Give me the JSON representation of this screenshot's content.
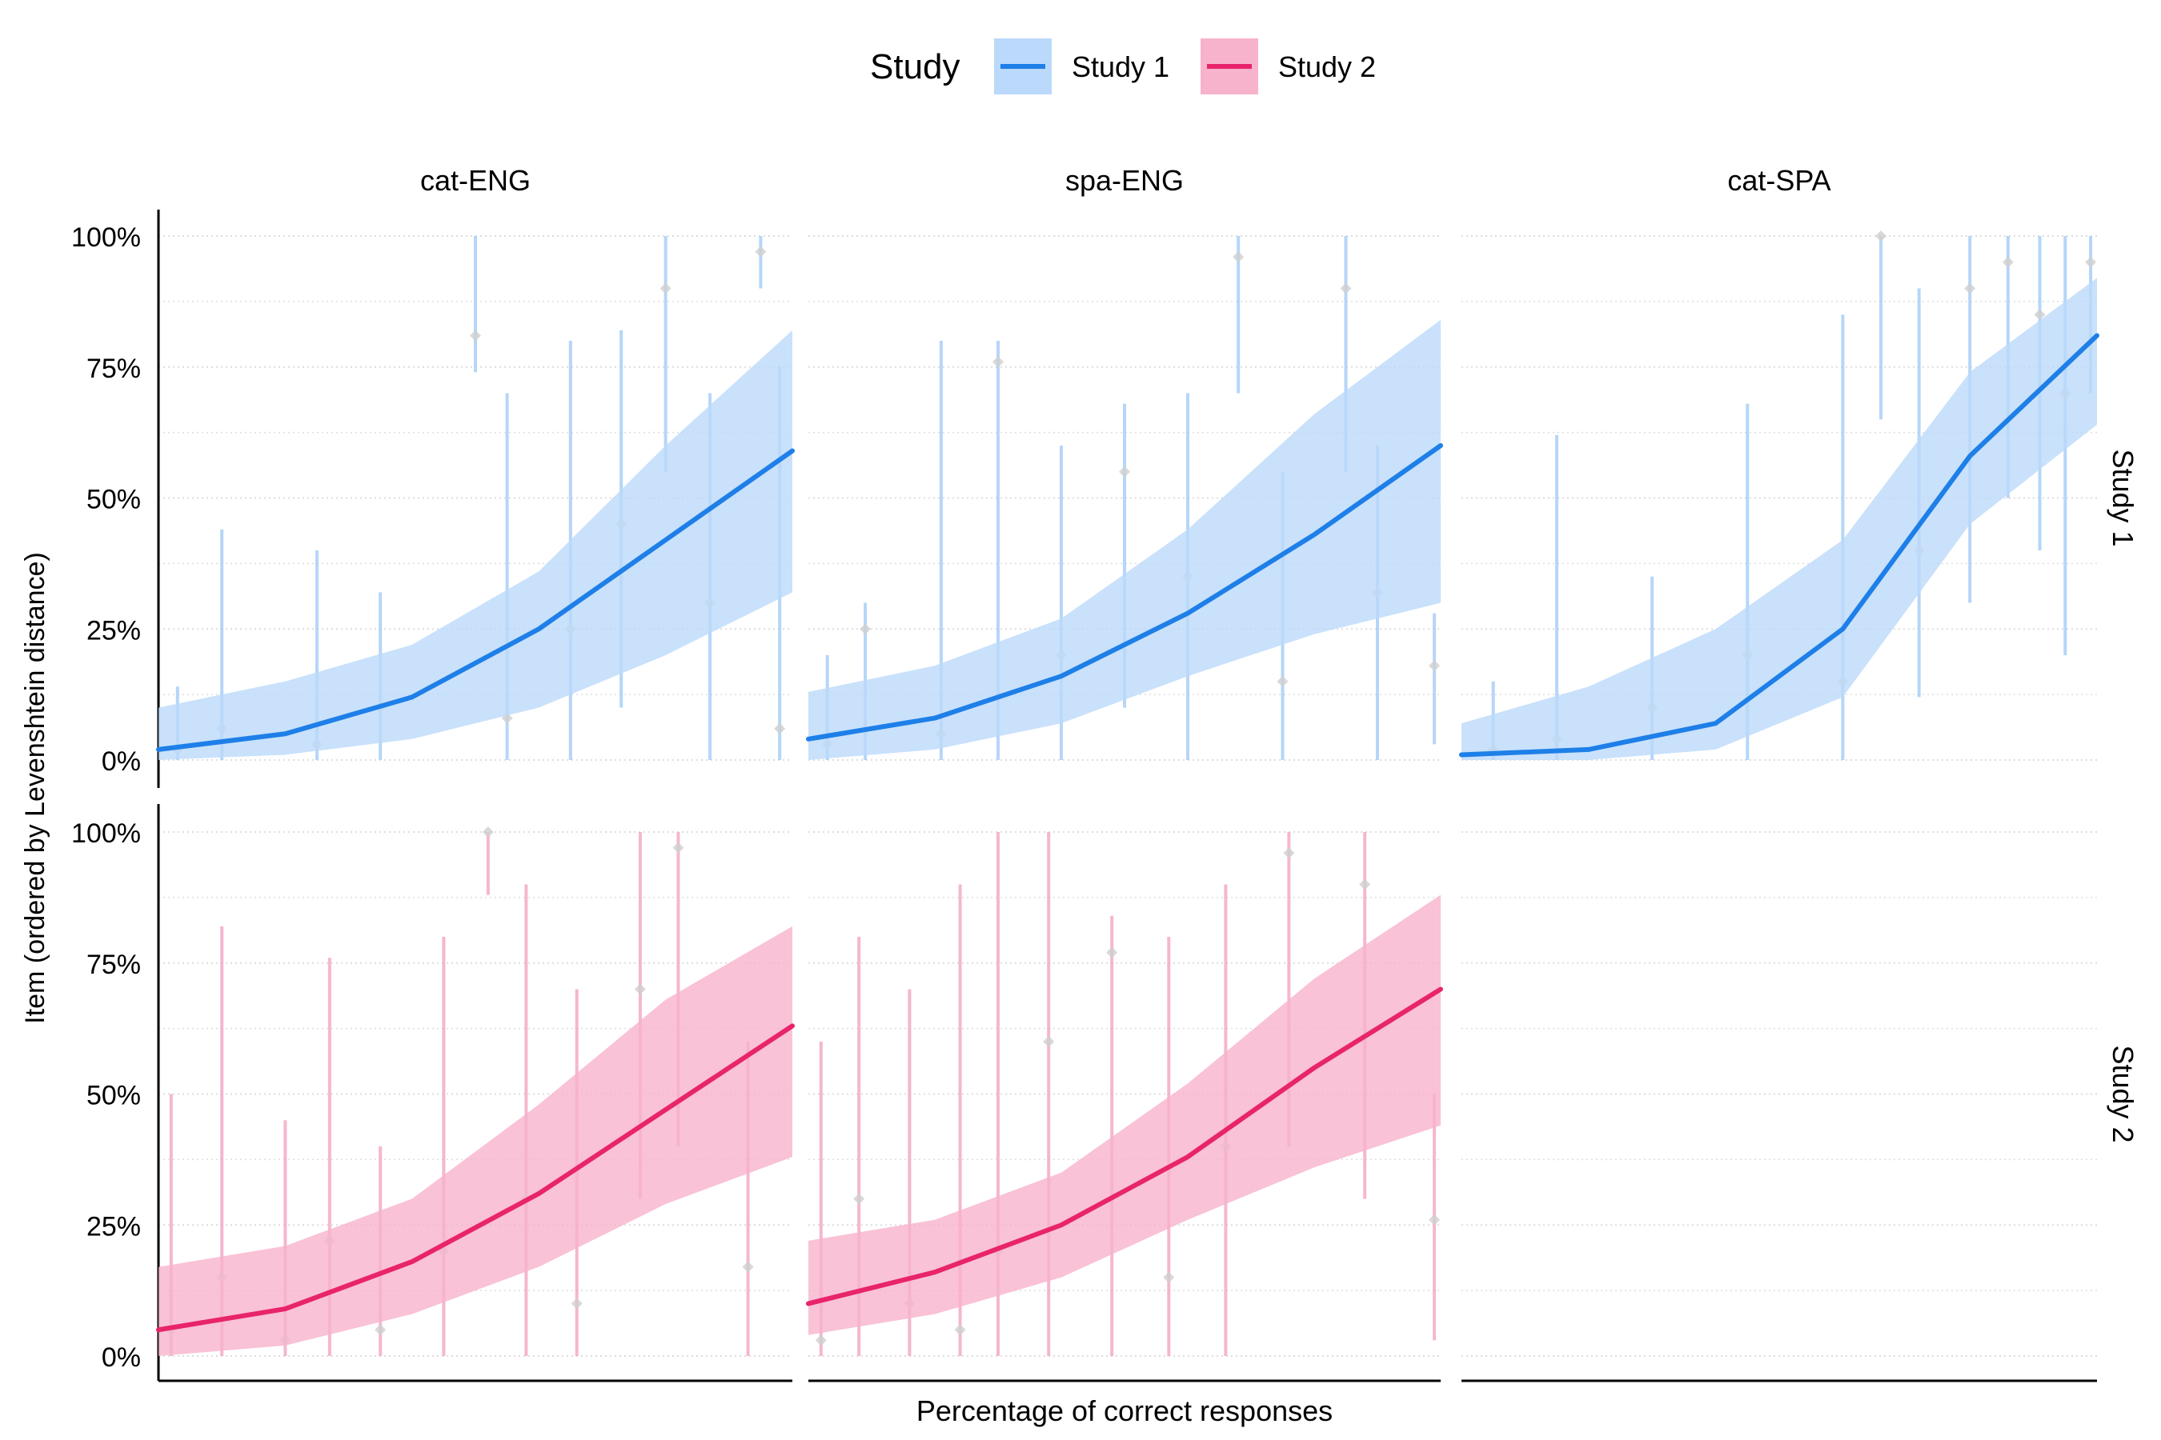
{
  "colors": {
    "study1_line": "#1E7FE8",
    "study1_band": "#BBD9FA",
    "study1_bar": "#9CC8F5",
    "study2_line": "#E8246B",
    "study2_band": "#F7B3CC",
    "study2_bar": "#F39DBF",
    "point": "#CFCFCF",
    "grid": "#DDDDDD"
  },
  "legend": {
    "title": "Study",
    "entries": [
      {
        "label": "Study 1",
        "color_key": "study1"
      },
      {
        "label": "Study 2",
        "color_key": "study2"
      }
    ]
  },
  "axes": {
    "x_title": "Percentage of correct responses",
    "y_title": "Item (ordered by Levenshtein distance)",
    "y_ticks": [
      "0%",
      "25%",
      "50%",
      "75%",
      "100%"
    ]
  },
  "chart_data": {
    "type": "line",
    "facet_columns": [
      "cat-ENG",
      "spa-ENG",
      "cat-SPA"
    ],
    "facet_rows": [
      "Study 1",
      "Study 2"
    ],
    "ylim": [
      0,
      1
    ],
    "xlim": [
      0,
      1
    ],
    "y_tick_values": [
      0,
      0.25,
      0.5,
      0.75,
      1
    ],
    "grid": "horizontal dotted",
    "legend_position": "top",
    "panels": [
      {
        "row": "Study 1",
        "col": "cat-ENG",
        "series": "Study 1",
        "x": [
          0,
          0.2,
          0.4,
          0.6,
          0.8,
          1.0
        ],
        "fit": [
          0.02,
          0.05,
          0.12,
          0.25,
          0.42,
          0.59
        ],
        "lower": [
          0.0,
          0.01,
          0.04,
          0.1,
          0.2,
          0.32
        ],
        "upper": [
          0.1,
          0.15,
          0.22,
          0.36,
          0.6,
          0.82
        ],
        "items": [
          {
            "x": 0.03,
            "y": 0.02,
            "lo": 0.0,
            "hi": 0.14
          },
          {
            "x": 0.1,
            "y": 0.06,
            "lo": 0.0,
            "hi": 0.44
          },
          {
            "x": 0.25,
            "y": 0.03,
            "lo": 0.0,
            "hi": 0.4
          },
          {
            "x": 0.35,
            "y": 0.1,
            "lo": 0.0,
            "hi": 0.32
          },
          {
            "x": 0.5,
            "y": 0.81,
            "lo": 0.74,
            "hi": 1.0
          },
          {
            "x": 0.55,
            "y": 0.08,
            "lo": 0.0,
            "hi": 0.7
          },
          {
            "x": 0.65,
            "y": 0.25,
            "lo": 0.0,
            "hi": 0.8
          },
          {
            "x": 0.73,
            "y": 0.45,
            "lo": 0.1,
            "hi": 0.82
          },
          {
            "x": 0.8,
            "y": 0.9,
            "lo": 0.55,
            "hi": 1.0
          },
          {
            "x": 0.87,
            "y": 0.3,
            "lo": 0.0,
            "hi": 0.7
          },
          {
            "x": 0.95,
            "y": 0.97,
            "lo": 0.9,
            "hi": 1.0
          },
          {
            "x": 0.98,
            "y": 0.06,
            "lo": 0.0,
            "hi": 0.75
          }
        ]
      },
      {
        "row": "Study 1",
        "col": "spa-ENG",
        "series": "Study 1",
        "x": [
          0,
          0.2,
          0.4,
          0.6,
          0.8,
          1.0
        ],
        "fit": [
          0.04,
          0.08,
          0.16,
          0.28,
          0.43,
          0.6
        ],
        "lower": [
          0.0,
          0.02,
          0.07,
          0.16,
          0.24,
          0.3
        ],
        "upper": [
          0.13,
          0.18,
          0.27,
          0.44,
          0.66,
          0.84
        ],
        "items": [
          {
            "x": 0.03,
            "y": 0.03,
            "lo": 0.0,
            "hi": 0.2
          },
          {
            "x": 0.09,
            "y": 0.25,
            "lo": 0.0,
            "hi": 0.3
          },
          {
            "x": 0.21,
            "y": 0.05,
            "lo": 0.0,
            "hi": 0.8
          },
          {
            "x": 0.3,
            "y": 0.76,
            "lo": 0.0,
            "hi": 0.8
          },
          {
            "x": 0.4,
            "y": 0.2,
            "lo": 0.0,
            "hi": 0.6
          },
          {
            "x": 0.5,
            "y": 0.55,
            "lo": 0.1,
            "hi": 0.68
          },
          {
            "x": 0.6,
            "y": 0.35,
            "lo": 0.0,
            "hi": 0.7
          },
          {
            "x": 0.68,
            "y": 0.96,
            "lo": 0.7,
            "hi": 1.0
          },
          {
            "x": 0.75,
            "y": 0.15,
            "lo": 0.0,
            "hi": 0.55
          },
          {
            "x": 0.85,
            "y": 0.9,
            "lo": 0.55,
            "hi": 1.0
          },
          {
            "x": 0.9,
            "y": 0.32,
            "lo": 0.0,
            "hi": 0.6
          },
          {
            "x": 0.99,
            "y": 0.18,
            "lo": 0.03,
            "hi": 0.28
          }
        ]
      },
      {
        "row": "Study 1",
        "col": "cat-SPA",
        "series": "Study 1",
        "x": [
          0,
          0.2,
          0.4,
          0.6,
          0.8,
          1.0
        ],
        "fit": [
          0.01,
          0.02,
          0.07,
          0.25,
          0.58,
          0.81
        ],
        "lower": [
          0.0,
          0.0,
          0.02,
          0.12,
          0.45,
          0.64
        ],
        "upper": [
          0.07,
          0.14,
          0.25,
          0.42,
          0.74,
          0.92
        ],
        "items": [
          {
            "x": 0.05,
            "y": 0.02,
            "lo": 0.0,
            "hi": 0.15
          },
          {
            "x": 0.15,
            "y": 0.04,
            "lo": 0.0,
            "hi": 0.62
          },
          {
            "x": 0.3,
            "y": 0.1,
            "lo": 0.0,
            "hi": 0.35
          },
          {
            "x": 0.45,
            "y": 0.2,
            "lo": 0.0,
            "hi": 0.68
          },
          {
            "x": 0.6,
            "y": 0.15,
            "lo": 0.0,
            "hi": 0.85
          },
          {
            "x": 0.66,
            "y": 1.0,
            "lo": 0.65,
            "hi": 1.0
          },
          {
            "x": 0.72,
            "y": 0.4,
            "lo": 0.12,
            "hi": 0.9
          },
          {
            "x": 0.8,
            "y": 0.9,
            "lo": 0.3,
            "hi": 1.0
          },
          {
            "x": 0.86,
            "y": 0.95,
            "lo": 0.5,
            "hi": 1.0
          },
          {
            "x": 0.91,
            "y": 0.85,
            "lo": 0.4,
            "hi": 1.0
          },
          {
            "x": 0.95,
            "y": 0.7,
            "lo": 0.2,
            "hi": 1.0
          },
          {
            "x": 0.99,
            "y": 0.95,
            "lo": 0.7,
            "hi": 1.0
          }
        ]
      },
      {
        "row": "Study 2",
        "col": "cat-ENG",
        "series": "Study 2",
        "x": [
          0,
          0.2,
          0.4,
          0.6,
          0.8,
          1.0
        ],
        "fit": [
          0.05,
          0.09,
          0.18,
          0.31,
          0.47,
          0.63
        ],
        "lower": [
          0.0,
          0.02,
          0.08,
          0.17,
          0.29,
          0.38
        ],
        "upper": [
          0.17,
          0.21,
          0.3,
          0.48,
          0.68,
          0.82
        ],
        "items": [
          {
            "x": 0.02,
            "y": 0.05,
            "lo": 0.0,
            "hi": 0.5
          },
          {
            "x": 0.1,
            "y": 0.15,
            "lo": 0.0,
            "hi": 0.82
          },
          {
            "x": 0.2,
            "y": 0.03,
            "lo": 0.0,
            "hi": 0.45
          },
          {
            "x": 0.27,
            "y": 0.22,
            "lo": 0.0,
            "hi": 0.76
          },
          {
            "x": 0.35,
            "y": 0.05,
            "lo": 0.0,
            "hi": 0.4
          },
          {
            "x": 0.45,
            "y": 0.2,
            "lo": 0.0,
            "hi": 0.8
          },
          {
            "x": 0.52,
            "y": 1.0,
            "lo": 0.88,
            "hi": 1.0
          },
          {
            "x": 0.58,
            "y": 0.3,
            "lo": 0.0,
            "hi": 0.9
          },
          {
            "x": 0.66,
            "y": 0.1,
            "lo": 0.0,
            "hi": 0.7
          },
          {
            "x": 0.76,
            "y": 0.7,
            "lo": 0.3,
            "hi": 1.0
          },
          {
            "x": 0.82,
            "y": 0.97,
            "lo": 0.4,
            "hi": 1.0
          },
          {
            "x": 0.93,
            "y": 0.17,
            "lo": 0.0,
            "hi": 0.6
          }
        ]
      },
      {
        "row": "Study 2",
        "col": "spa-ENG",
        "series": "Study 2",
        "x": [
          0,
          0.2,
          0.4,
          0.6,
          0.8,
          1.0
        ],
        "fit": [
          0.1,
          0.16,
          0.25,
          0.38,
          0.55,
          0.7
        ],
        "lower": [
          0.04,
          0.08,
          0.15,
          0.26,
          0.36,
          0.44
        ],
        "upper": [
          0.22,
          0.26,
          0.35,
          0.52,
          0.72,
          0.88
        ],
        "items": [
          {
            "x": 0.02,
            "y": 0.03,
            "lo": 0.0,
            "hi": 0.6
          },
          {
            "x": 0.08,
            "y": 0.3,
            "lo": 0.0,
            "hi": 0.8
          },
          {
            "x": 0.16,
            "y": 0.1,
            "lo": 0.0,
            "hi": 0.7
          },
          {
            "x": 0.24,
            "y": 0.05,
            "lo": 0.0,
            "hi": 0.9
          },
          {
            "x": 0.3,
            "y": 0.2,
            "lo": 0.0,
            "hi": 1.0
          },
          {
            "x": 0.38,
            "y": 0.6,
            "lo": 0.0,
            "hi": 1.0
          },
          {
            "x": 0.48,
            "y": 0.77,
            "lo": 0.0,
            "hi": 0.84
          },
          {
            "x": 0.57,
            "y": 0.15,
            "lo": 0.0,
            "hi": 0.8
          },
          {
            "x": 0.66,
            "y": 0.4,
            "lo": 0.0,
            "hi": 0.9
          },
          {
            "x": 0.76,
            "y": 0.96,
            "lo": 0.4,
            "hi": 1.0
          },
          {
            "x": 0.88,
            "y": 0.9,
            "lo": 0.3,
            "hi": 1.0
          },
          {
            "x": 0.99,
            "y": 0.26,
            "lo": 0.03,
            "hi": 0.5
          }
        ]
      }
    ]
  }
}
